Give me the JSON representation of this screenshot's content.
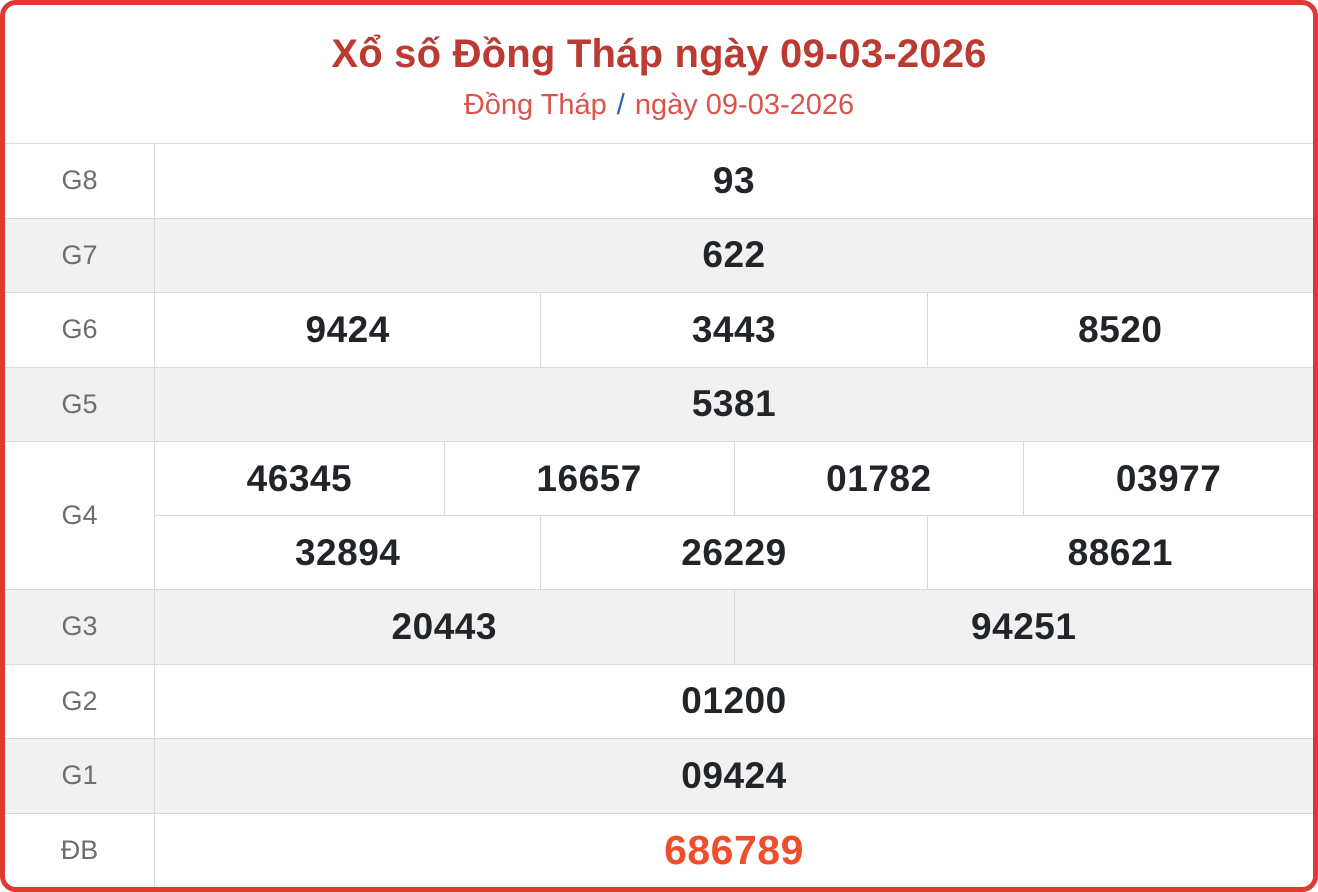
{
  "header": {
    "title": "Xổ số Đồng Tháp ngày 09-03-2026",
    "breadcrumb": {
      "region": "Đồng Tháp",
      "separator": "/",
      "date": "ngày 09-03-2026"
    }
  },
  "colors": {
    "card_border_red": "#dc3a32",
    "title_red": "#bb3a32",
    "subtitle_red": "#d9544d",
    "separator_blue": "#2c5eb4",
    "special_prize_orange": "#ee4e2c",
    "value_dark": "#212529",
    "label_gray": "#6e6e6e",
    "alt_row_bg": "#f1f1f1",
    "grid_line": "#d9d9d9"
  },
  "table": {
    "rows": [
      {
        "label": "G8",
        "highlight": false,
        "groups": [
          [
            "93"
          ]
        ]
      },
      {
        "label": "G7",
        "highlight": false,
        "groups": [
          [
            "622"
          ]
        ]
      },
      {
        "label": "G6",
        "highlight": false,
        "groups": [
          [
            "9424",
            "3443",
            "8520"
          ]
        ]
      },
      {
        "label": "G5",
        "highlight": false,
        "groups": [
          [
            "5381"
          ]
        ]
      },
      {
        "label": "G4",
        "highlight": false,
        "groups": [
          [
            "46345",
            "16657",
            "01782",
            "03977"
          ],
          [
            "32894",
            "26229",
            "88621"
          ]
        ]
      },
      {
        "label": "G3",
        "highlight": false,
        "groups": [
          [
            "20443",
            "94251"
          ]
        ]
      },
      {
        "label": "G2",
        "highlight": false,
        "groups": [
          [
            "01200"
          ]
        ]
      },
      {
        "label": "G1",
        "highlight": false,
        "groups": [
          [
            "09424"
          ]
        ]
      },
      {
        "label": "ĐB",
        "highlight": true,
        "groups": [
          [
            "686789"
          ]
        ]
      }
    ]
  }
}
